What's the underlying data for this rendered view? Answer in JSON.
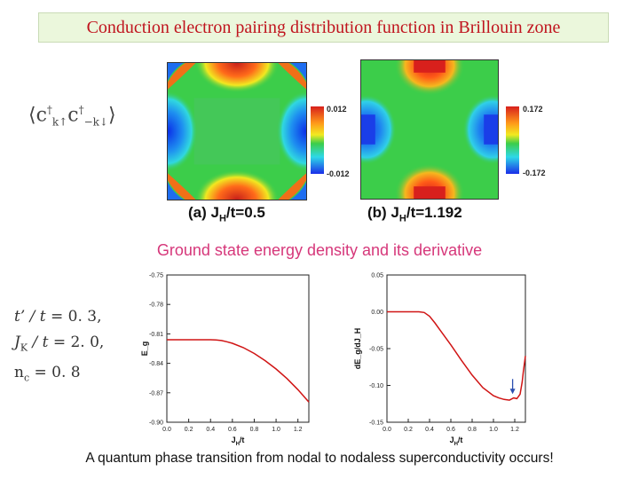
{
  "header": {
    "title": "Conduction electron pairing distribution function in Brillouin zone"
  },
  "formula_tex": "⟨c†k↑ c†−k↓⟩",
  "colorbars": [
    {
      "max_label": "0.012",
      "min_label": "-0.012"
    },
    {
      "max_label": "0.172",
      "min_label": "-0.172"
    }
  ],
  "captions": [
    {
      "prefix": "(a) J",
      "sub": "H",
      "suffix": "/t=0.5"
    },
    {
      "prefix": "(b) J",
      "sub": "H",
      "suffix": "/t=1.192"
    }
  ],
  "section2_title": "Ground state energy density and its derivative",
  "params": [
    {
      "lhs": "t’ / t",
      "rhs": "= 0. 3,"
    },
    {
      "lhs": "J",
      "lhs_sub": "K",
      "lhs_rest": " / t",
      "rhs": "= 2. 0,"
    },
    {
      "lhs": "n",
      "lhs_sub": "c",
      "lhs_rest": "",
      "rhs": "= 0. 8"
    }
  ],
  "footer": "A quantum phase transition from nodal to nodaless superconductivity occurs!",
  "colors": {
    "curve": "#d01414",
    "arrow": "#2c4fb0",
    "heat_red": "#d8201c",
    "heat_green": "#3ccd4a",
    "heat_blue": "#1a48e8"
  },
  "chart_data": [
    {
      "type": "heatmap",
      "panel": "(a) JH/t=0.5",
      "colorbar_range": [
        -0.012,
        0.012
      ]
    },
    {
      "type": "heatmap",
      "panel": "(b) JH/t=1.192",
      "colorbar_range": [
        -0.172,
        0.172
      ]
    },
    {
      "type": "line",
      "xlabel": "J_H/t",
      "ylabel": "E_g",
      "xlim": [
        0.0,
        1.3
      ],
      "ylim": [
        -0.9,
        -0.75
      ],
      "xticks": [
        "0.0",
        "0.2",
        "0.4",
        "0.6",
        "0.8",
        "1.0",
        "1.2"
      ],
      "yticks": [
        "-0.75",
        "-0.78",
        "-0.81",
        "-0.84",
        "-0.87",
        "-0.90"
      ],
      "x": [
        0.0,
        0.1,
        0.2,
        0.3,
        0.4,
        0.45,
        0.5,
        0.55,
        0.6,
        0.7,
        0.8,
        0.9,
        1.0,
        1.1,
        1.2,
        1.3
      ],
      "y": [
        -0.816,
        -0.816,
        -0.816,
        -0.816,
        -0.816,
        -0.8162,
        -0.8168,
        -0.818,
        -0.8196,
        -0.824,
        -0.83,
        -0.8373,
        -0.8458,
        -0.8555,
        -0.8668,
        -0.8795
      ]
    },
    {
      "type": "line",
      "xlabel": "J_H/t",
      "ylabel": "dE_g/dJ_H",
      "xlim": [
        0.0,
        1.3
      ],
      "ylim": [
        -0.15,
        0.05
      ],
      "xticks": [
        "0.0",
        "0.2",
        "0.4",
        "0.6",
        "0.8",
        "1.0",
        "1.2"
      ],
      "yticks": [
        "0.05",
        "0.00",
        "-0.05",
        "-0.10",
        "-0.15"
      ],
      "x": [
        0.0,
        0.1,
        0.2,
        0.3,
        0.35,
        0.4,
        0.45,
        0.5,
        0.6,
        0.7,
        0.8,
        0.9,
        1.0,
        1.05,
        1.1,
        1.15,
        1.19,
        1.22,
        1.25,
        1.27,
        1.28,
        1.3
      ],
      "y": [
        0.0,
        0.0,
        0.0,
        0.0,
        -0.001,
        -0.006,
        -0.015,
        -0.025,
        -0.045,
        -0.066,
        -0.086,
        -0.103,
        -0.114,
        -0.117,
        -0.119,
        -0.12,
        -0.117,
        -0.118,
        -0.112,
        -0.095,
        -0.082,
        -0.06
      ],
      "annotation": {
        "type": "arrow",
        "x": 1.18,
        "y": -0.113
      }
    }
  ]
}
